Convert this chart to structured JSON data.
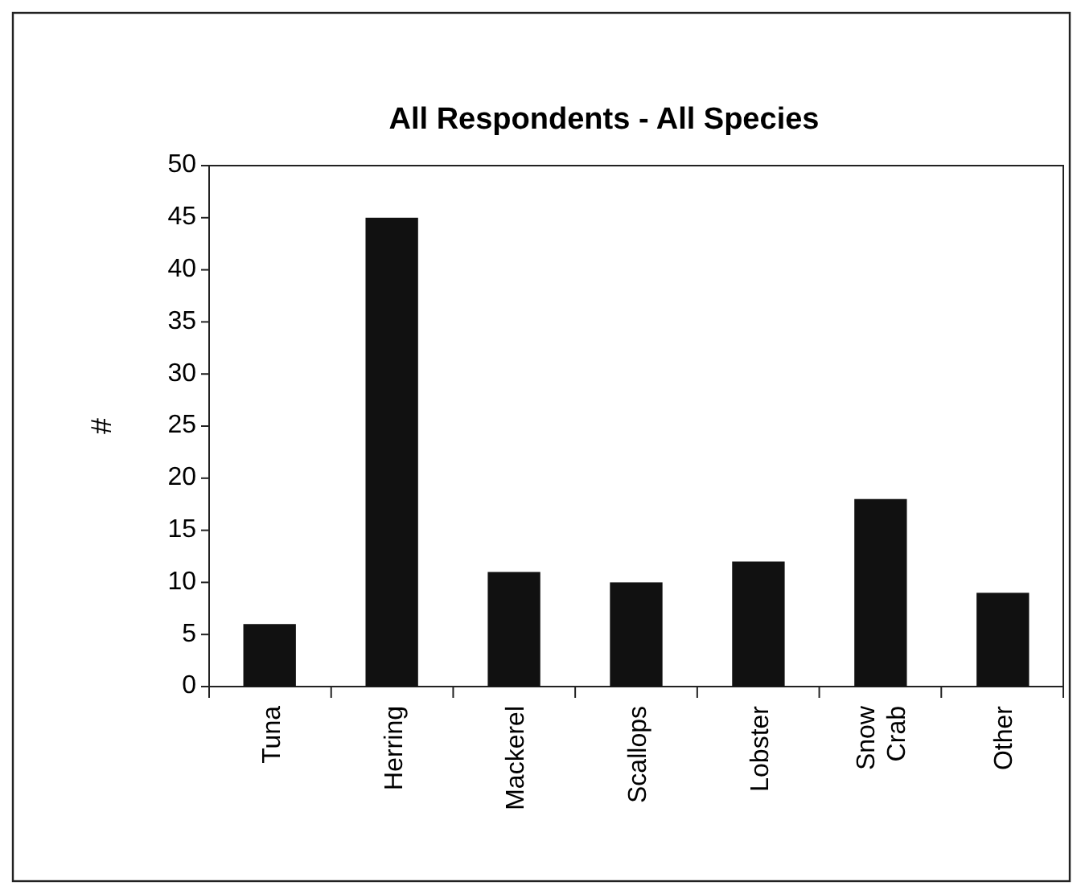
{
  "chart_data": {
    "type": "bar",
    "title": "All Respondents - All Species",
    "ylabel": "#",
    "categories": [
      "Tuna",
      "Herring",
      "Mackerel",
      "Scallops",
      "Lobster",
      "Snow Crab",
      "Other"
    ],
    "values": [
      6,
      45,
      11,
      10,
      12,
      18,
      9
    ],
    "color": "#111111",
    "ylim": [
      0,
      50
    ],
    "yticks": [
      0,
      5,
      10,
      15,
      20,
      25,
      30,
      35,
      40,
      45,
      50
    ]
  }
}
